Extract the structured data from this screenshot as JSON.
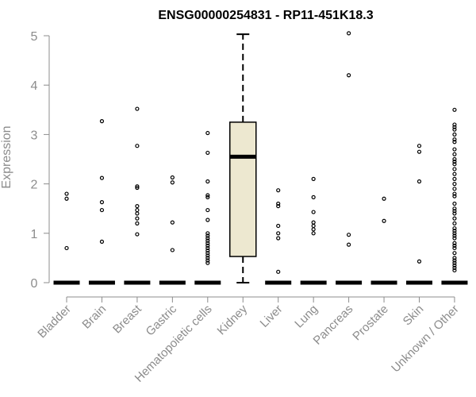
{
  "chart_data": {
    "type": "boxplot",
    "title": "ENSG00000254831 - RP11-451K18.3",
    "xlabel": "",
    "ylabel": "Expression",
    "ylim": [
      0,
      5
    ],
    "yticks": [
      "0",
      "1",
      "2",
      "3",
      "4",
      "5"
    ],
    "categories": [
      "Bladder",
      "Brain",
      "Breast",
      "Gastric",
      "Hematopoietic cells",
      "Kidney",
      "Liver",
      "Lung",
      "Pancreas",
      "Prostate",
      "Skin",
      "Unknown / Other"
    ],
    "box_fill": "#ede8d0",
    "series": [
      {
        "category": "Bladder",
        "median": 0,
        "q1": 0,
        "q3": 0,
        "whisker_low": 0,
        "whisker_high": 0,
        "outliers": [
          1.8,
          1.7,
          0.7
        ]
      },
      {
        "category": "Brain",
        "median": 0,
        "q1": 0,
        "q3": 0,
        "whisker_low": 0,
        "whisker_high": 0,
        "outliers": [
          3.27,
          2.12,
          1.63,
          1.47,
          0.83
        ]
      },
      {
        "category": "Breast",
        "median": 0,
        "q1": 0,
        "q3": 0,
        "whisker_low": 0,
        "whisker_high": 0,
        "outliers": [
          3.52,
          2.77,
          1.95,
          1.92,
          1.55,
          1.47,
          1.4,
          1.3,
          1.2,
          0.98
        ]
      },
      {
        "category": "Gastric",
        "median": 0,
        "q1": 0,
        "q3": 0,
        "whisker_low": 0,
        "whisker_high": 0,
        "outliers": [
          2.13,
          2.03,
          1.22,
          0.66
        ]
      },
      {
        "category": "Hematopoietic cells",
        "median": 0,
        "q1": 0,
        "q3": 0,
        "whisker_low": 0,
        "whisker_high": 0,
        "outliers": [
          3.03,
          2.63,
          2.05,
          1.77,
          1.73,
          1.47,
          1.27,
          1.0,
          0.95,
          0.9,
          0.85,
          0.8,
          0.75,
          0.7,
          0.65,
          0.6,
          0.55,
          0.5,
          0.45,
          0.4
        ]
      },
      {
        "category": "Kidney",
        "median": 2.55,
        "q1": 0.53,
        "q3": 3.25,
        "whisker_low": 0,
        "whisker_high": 5.03,
        "outliers": []
      },
      {
        "category": "Liver",
        "median": 0,
        "q1": 0,
        "q3": 0,
        "whisker_low": 0,
        "whisker_high": 0,
        "outliers": [
          1.87,
          1.6,
          1.55,
          1.15,
          1.0,
          0.9,
          0.22
        ]
      },
      {
        "category": "Lung",
        "median": 0,
        "q1": 0,
        "q3": 0,
        "whisker_low": 0,
        "whisker_high": 0,
        "outliers": [
          2.1,
          1.73,
          1.43,
          1.22,
          1.15,
          1.08,
          1.0
        ]
      },
      {
        "category": "Pancreas",
        "median": 0,
        "q1": 0,
        "q3": 0,
        "whisker_low": 0,
        "whisker_high": 0,
        "outliers": [
          5.05,
          4.2,
          0.97,
          0.77
        ]
      },
      {
        "category": "Prostate",
        "median": 0,
        "q1": 0,
        "q3": 0,
        "whisker_low": 0,
        "whisker_high": 0,
        "outliers": [
          1.7,
          1.25
        ]
      },
      {
        "category": "Skin",
        "median": 0,
        "q1": 0,
        "q3": 0,
        "whisker_low": 0,
        "whisker_high": 0,
        "outliers": [
          2.77,
          2.65,
          2.05,
          0.43
        ]
      },
      {
        "category": "Unknown / Other",
        "median": 0,
        "q1": 0,
        "q3": 0,
        "whisker_low": 0,
        "whisker_high": 0,
        "outliers": [
          3.5,
          3.2,
          3.15,
          3.1,
          3.0,
          2.9,
          2.85,
          2.7,
          2.6,
          2.5,
          2.45,
          2.4,
          2.3,
          2.2,
          2.1,
          2.0,
          1.9,
          1.8,
          1.75,
          1.6,
          1.5,
          1.45,
          1.4,
          1.3,
          1.2,
          1.1,
          1.05,
          1.0,
          0.95,
          0.9,
          0.8,
          0.75,
          0.7,
          0.6,
          0.5,
          0.45,
          0.4,
          0.35,
          0.3,
          0.25
        ]
      }
    ]
  }
}
